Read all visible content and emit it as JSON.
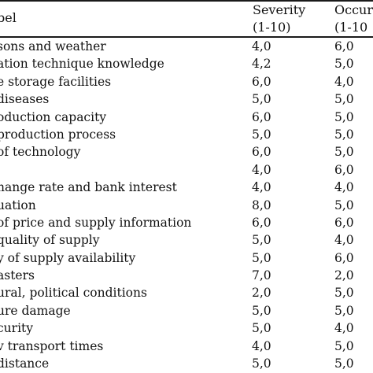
{
  "header": {
    "label": "bel",
    "severity_line1": "Severity",
    "severity_line2": "(1-10)",
    "occurrence_line1": "Occur",
    "occurrence_line2": "(1-10"
  },
  "rows": [
    {
      "label": "sons and weather",
      "severity": "4,0",
      "occurrence": "6,0"
    },
    {
      "label": "ation technique knowledge",
      "severity": "4,2",
      "occurrence": "5,0"
    },
    {
      "label": "e storage facilities",
      "severity": "6,0",
      "occurrence": "4,0"
    },
    {
      "label": "diseases",
      "severity": "5,0",
      "occurrence": "5,0"
    },
    {
      "label": "oduction capacity",
      "severity": "6,0",
      "occurrence": "5,0"
    },
    {
      "label": " production process",
      "severity": "5,0",
      "occurrence": "5,0"
    },
    {
      "label": " of technology",
      "severity": "6,0",
      "occurrence": "5,0"
    },
    {
      "label": "",
      "severity": "4,0",
      "occurrence": "6,0"
    },
    {
      "label": "hange rate and bank interest",
      "severity": "4,0",
      "occurrence": "4,0"
    },
    {
      "label": "uation",
      "severity": "8,0",
      "occurrence": "5,0"
    },
    {
      "label": " of price and supply information",
      "severity": "6,0",
      "occurrence": "6,0"
    },
    {
      "label": "quality of supply",
      "severity": "5,0",
      "occurrence": "4,0"
    },
    {
      "label": "y of supply availability",
      "severity": "5,0",
      "occurrence": "6,0"
    },
    {
      "label": "asters",
      "severity": "7,0",
      "occurrence": "2,0"
    },
    {
      "label": "ural, political conditions",
      "severity": "2,0",
      "occurrence": "5,0"
    },
    {
      "label": "ure damage",
      "severity": "5,0",
      "occurrence": "5,0"
    },
    {
      "label": "curity",
      "severity": "5,0",
      "occurrence": "4,0"
    },
    {
      "label": "v transport times",
      "severity": "4,0",
      "occurrence": "5,0"
    },
    {
      "label": "distance",
      "severity": "5,0",
      "occurrence": "5,0"
    }
  ]
}
